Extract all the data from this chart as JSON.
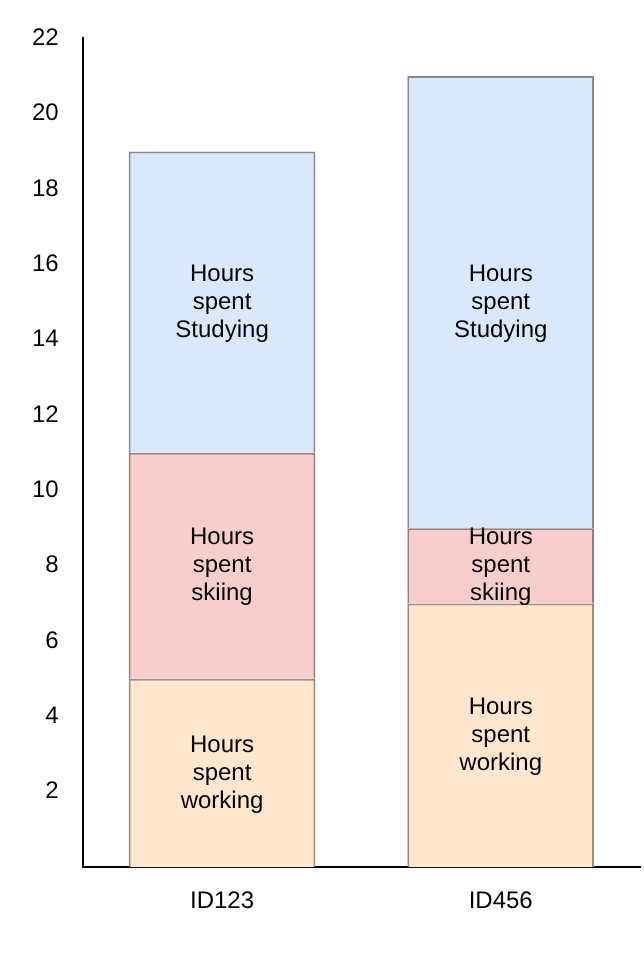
{
  "chart_data": {
    "type": "bar",
    "stacked": true,
    "categories": [
      "ID123",
      "ID456"
    ],
    "series": [
      {
        "name": "Hours spent working",
        "color": "#ffe6cc",
        "values": [
          5,
          7
        ]
      },
      {
        "name": "Hours spent skiing",
        "color": "#f8cecc",
        "values": [
          6,
          2
        ]
      },
      {
        "name": "Hours spent Studying",
        "color": "#dae8fc",
        "values": [
          8,
          12
        ]
      }
    ],
    "ylim": [
      0,
      22
    ],
    "yticks": [
      2,
      4,
      6,
      8,
      10,
      12,
      14,
      16,
      18,
      20,
      22
    ],
    "grid": false,
    "legend": false
  }
}
